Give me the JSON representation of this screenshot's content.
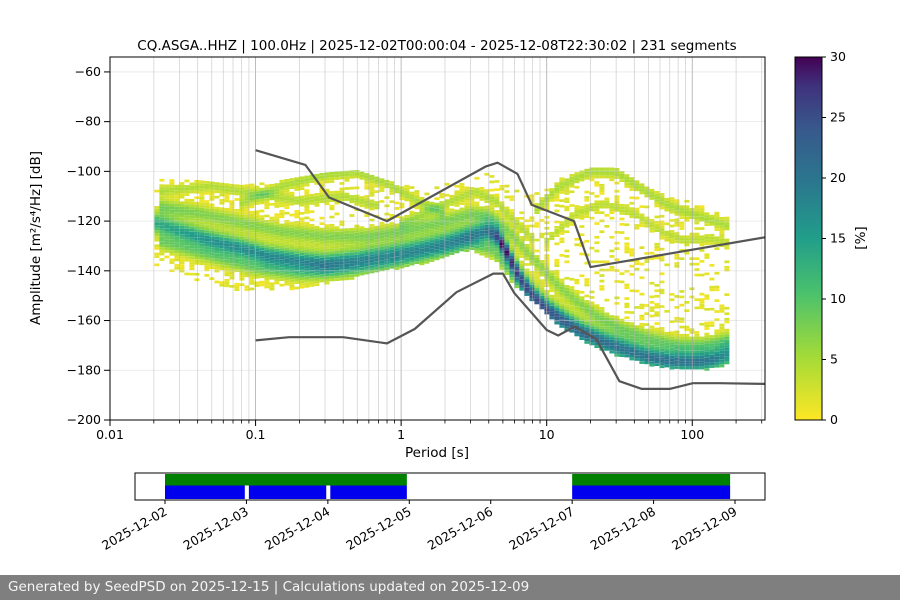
{
  "chart_data": {
    "type": "heatmap",
    "title": "CQ.ASGA..HHZ | 100.0Hz | 2025-12-02T00:00:04 - 2025-12-08T22:30:02 | 231 segments",
    "meta": {
      "station_id": "CQ.ASGA..HHZ",
      "sampling_rate": "100.0Hz",
      "start": "2025-12-02T00:00:04",
      "end": "2025-12-08T22:30:02",
      "segments": 231
    },
    "xlabel": "Period [s]",
    "ylabel": "Amplitude [m²/s⁴/Hz] [dB]",
    "xscale": "log",
    "xlim": [
      0.01,
      316
    ],
    "ylim": [
      -200,
      -54
    ],
    "xticks": [
      0.01,
      0.1,
      1,
      10,
      100
    ],
    "xtick_labels": [
      "0.01",
      "0.1",
      "1",
      "10",
      "100"
    ],
    "yticks": [
      -200,
      -180,
      -160,
      -140,
      -120,
      -100,
      -80,
      -60
    ],
    "ytick_labels": [
      "−200",
      "−180",
      "−160",
      "−140",
      "−120",
      "−100",
      "−80",
      "−60"
    ],
    "grid": true,
    "colorbar": {
      "label": "[%]",
      "min": 0,
      "max": 30,
      "ticks": [
        0,
        5,
        10,
        15,
        20,
        25,
        30
      ],
      "tick_labels": [
        "0",
        "5",
        "10",
        "15",
        "20",
        "25",
        "30"
      ],
      "colormap": "viridis (0%=yellow, 30%=dark purple)"
    },
    "noise_models": {
      "color": "#555555",
      "nhnm": [
        [
          0.1,
          -91.5
        ],
        [
          0.22,
          -97.4
        ],
        [
          0.32,
          -110.5
        ],
        [
          0.8,
          -120
        ],
        [
          3.8,
          -98.1
        ],
        [
          4.6,
          -96.5
        ],
        [
          6.3,
          -101
        ],
        [
          7.9,
          -113.5
        ],
        [
          15.4,
          -120
        ],
        [
          20,
          -138.5
        ],
        [
          316,
          -126.5
        ]
      ],
      "nlnm": [
        [
          0.1,
          -168
        ],
        [
          0.17,
          -166.7
        ],
        [
          0.4,
          -166.7
        ],
        [
          0.8,
          -169.2
        ],
        [
          1.24,
          -163.4
        ],
        [
          2.4,
          -148.6
        ],
        [
          4.3,
          -141.1
        ],
        [
          5,
          -141.1
        ],
        [
          6,
          -149
        ],
        [
          10,
          -163.8
        ],
        [
          12,
          -166
        ],
        [
          15.6,
          -162.4
        ],
        [
          21.9,
          -167.5
        ],
        [
          31.6,
          -184.4
        ],
        [
          45,
          -187.5
        ],
        [
          70,
          -187.5
        ],
        [
          101,
          -185.2
        ],
        [
          154,
          -185.2
        ],
        [
          316,
          -185.5
        ]
      ]
    },
    "ppsd": {
      "period_range": [
        0.021,
        179
      ],
      "sigma_db": 2.6,
      "halo": {
        "peak_pct": 3.5,
        "sigma_db": 6
      },
      "mode": [
        [
          0.021,
          -121
        ],
        [
          0.03,
          -124
        ],
        [
          0.05,
          -128
        ],
        [
          0.08,
          -131
        ],
        [
          0.12,
          -134
        ],
        [
          0.2,
          -136
        ],
        [
          0.3,
          -137
        ],
        [
          0.5,
          -135.5
        ],
        [
          0.8,
          -133.5
        ],
        [
          1.2,
          -131.5
        ],
        [
          2,
          -128.5
        ],
        [
          3,
          -125.5
        ],
        [
          4,
          -124
        ],
        [
          4.6,
          -126.5
        ],
        [
          5.2,
          -131.5
        ],
        [
          6,
          -138.5
        ],
        [
          7,
          -145
        ],
        [
          8.5,
          -151
        ],
        [
          10,
          -155
        ],
        [
          13,
          -159.5
        ],
        [
          18,
          -164.5
        ],
        [
          25,
          -168
        ],
        [
          35,
          -171
        ],
        [
          50,
          -174
        ],
        [
          70,
          -175.5
        ],
        [
          100,
          -176
        ],
        [
          140,
          -175
        ],
        [
          179,
          -172.5
        ]
      ],
      "mode_peak_pct": [
        [
          0.021,
          10
        ],
        [
          0.05,
          13
        ],
        [
          0.1,
          14
        ],
        [
          0.3,
          14
        ],
        [
          0.7,
          12.5
        ],
        [
          1.5,
          12
        ],
        [
          2.5,
          13
        ],
        [
          3.8,
          16
        ],
        [
          4.4,
          20
        ],
        [
          5,
          28
        ],
        [
          5.8,
          24
        ],
        [
          7,
          19
        ],
        [
          9,
          18
        ],
        [
          12,
          17
        ],
        [
          16,
          15
        ],
        [
          25,
          14
        ],
        [
          40,
          13
        ],
        [
          70,
          12.5
        ],
        [
          120,
          12
        ],
        [
          179,
          10
        ]
      ],
      "upper_env": [
        [
          0.021,
          -103.5
        ],
        [
          0.04,
          -104
        ],
        [
          0.08,
          -106
        ],
        [
          0.15,
          -104
        ],
        [
          0.3,
          -101
        ],
        [
          0.5,
          -100
        ],
        [
          0.8,
          -104
        ],
        [
          1.5,
          -108
        ],
        [
          2.5,
          -103.5
        ],
        [
          3.5,
          -100
        ],
        [
          5,
          -104
        ],
        [
          8,
          -110
        ],
        [
          12,
          -103.5
        ],
        [
          20,
          -99
        ],
        [
          30,
          -99
        ],
        [
          50,
          -107
        ],
        [
          80,
          -112
        ],
        [
          120,
          -112
        ],
        [
          179,
          -117
        ]
      ],
      "lower_env": [
        [
          0.021,
          -138
        ],
        [
          0.05,
          -146
        ],
        [
          0.1,
          -149
        ],
        [
          0.2,
          -147
        ],
        [
          0.4,
          -144
        ],
        [
          0.8,
          -140
        ],
        [
          1.5,
          -137
        ],
        [
          3,
          -131.5
        ],
        [
          4.5,
          -136
        ],
        [
          6,
          -146
        ],
        [
          8,
          -152
        ],
        [
          12,
          -162
        ],
        [
          20,
          -170
        ],
        [
          30,
          -174
        ],
        [
          50,
          -178
        ],
        [
          80,
          -180
        ],
        [
          120,
          -180
        ],
        [
          179,
          -178
        ]
      ],
      "streaks": [
        {
          "peak_pct": 5,
          "sigma_db": 1.6,
          "points": [
            [
              0.08,
              -113
            ],
            [
              0.15,
              -106
            ],
            [
              0.3,
              -101.5
            ],
            [
              0.5,
              -100.5
            ],
            [
              0.8,
              -105
            ],
            [
              1.3,
              -112
            ],
            [
              2,
              -117
            ]
          ]
        },
        {
          "peak_pct": 4.5,
          "sigma_db": 1.6,
          "points": [
            [
              0.021,
              -108
            ],
            [
              0.05,
              -106
            ],
            [
              0.1,
              -109
            ],
            [
              0.2,
              -112
            ],
            [
              0.4,
              -110
            ],
            [
              0.7,
              -114
            ]
          ]
        },
        {
          "peak_pct": 4.5,
          "sigma_db": 1.6,
          "points": [
            [
              1,
              -121
            ],
            [
              2,
              -113
            ],
            [
              3.2,
              -108
            ],
            [
              4.5,
              -112
            ],
            [
              6,
              -120
            ],
            [
              8,
              -127
            ]
          ]
        },
        {
          "peak_pct": 5,
          "sigma_db": 1.8,
          "points": [
            [
              8,
              -117
            ],
            [
              12,
              -106.5
            ],
            [
              20,
              -100
            ],
            [
              30,
              -100.5
            ],
            [
              45,
              -107
            ],
            [
              70,
              -114
            ],
            [
              110,
              -118
            ],
            [
              179,
              -122
            ]
          ]
        },
        {
          "peak_pct": 4,
          "sigma_db": 1.6,
          "points": [
            [
              10,
              -128
            ],
            [
              16,
              -117
            ],
            [
              25,
              -113
            ],
            [
              40,
              -117
            ],
            [
              60,
              -124
            ],
            [
              90,
              -128
            ],
            [
              130,
              -127
            ],
            [
              179,
              -129
            ]
          ]
        },
        {
          "peak_pct": 6.5,
          "sigma_db": 2.2,
          "points": [
            [
              0.021,
              -114
            ],
            [
              0.04,
              -116.5
            ],
            [
              0.08,
              -120.5
            ],
            [
              0.15,
              -124
            ],
            [
              0.3,
              -126
            ],
            [
              0.6,
              -126
            ],
            [
              1,
              -124
            ],
            [
              2,
              -120
            ],
            [
              3,
              -117
            ],
            [
              4,
              -118
            ],
            [
              5.5,
              -124
            ],
            [
              7,
              -131
            ],
            [
              9,
              -138
            ],
            [
              12,
              -146
            ],
            [
              16,
              -152
            ],
            [
              22,
              -158
            ],
            [
              32,
              -163
            ],
            [
              50,
              -167
            ],
            [
              80,
              -170
            ],
            [
              120,
              -170
            ],
            [
              179,
              -168
            ]
          ]
        },
        {
          "peak_pct": 6.5,
          "sigma_db": 2.2,
          "points": [
            [
              0.021,
              -128
            ],
            [
              0.05,
              -134
            ],
            [
              0.1,
              -139
            ],
            [
              0.2,
              -141
            ],
            [
              0.4,
              -140
            ],
            [
              0.7,
              -138
            ],
            [
              1.2,
              -135
            ],
            [
              2,
              -132
            ],
            [
              3,
              -129
            ],
            [
              4.3,
              -132
            ],
            [
              5.5,
              -140
            ],
            [
              7,
              -148
            ],
            [
              9,
              -155
            ],
            [
              12,
              -161
            ],
            [
              18,
              -167
            ],
            [
              28,
              -172
            ],
            [
              45,
              -176
            ],
            [
              75,
              -178
            ],
            [
              120,
              -178
            ],
            [
              179,
              -176
            ]
          ]
        }
      ]
    },
    "timeline": {
      "axis_dates": [
        "2025-12-02",
        "2025-12-03",
        "2025-12-04",
        "2025-12-05",
        "2025-12-06",
        "2025-12-07",
        "2025-12-08",
        "2025-12-09"
      ],
      "coverage_color": "#008000",
      "psd_color": "#0000ee",
      "coverage_segments_days": [
        [
          0,
          2.97
        ],
        [
          5.0,
          6.94
        ]
      ],
      "psd_segments_days": [
        [
          0,
          0.98
        ],
        [
          1.03,
          1.98
        ],
        [
          2.03,
          2.97
        ],
        [
          5.0,
          6.94
        ]
      ]
    }
  },
  "footer": {
    "text": "Generated by SeedPSD on 2025-12-15 | Calculations updated on 2025-12-09"
  }
}
